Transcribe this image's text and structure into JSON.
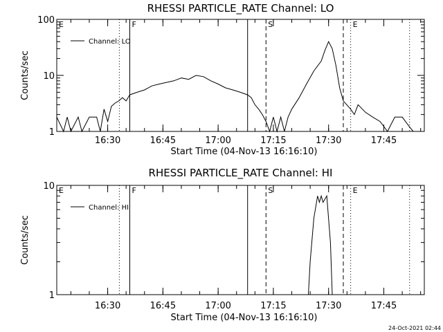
{
  "chart_data": [
    {
      "type": "line",
      "title": "RHESSI PARTICLE_RATE Channel: LO",
      "xlabel": "Start Time (04-Nov-13 16:16:10)",
      "ylabel": "Counts/sec",
      "yscale": "log",
      "ylim": [
        1,
        100
      ],
      "xlim": [
        "16:16:10",
        "17:56:00"
      ],
      "x_ticks": [
        "16:30",
        "16:45",
        "17:00",
        "17:15",
        "17:30",
        "17:45"
      ],
      "y_ticks": [
        "1",
        "10",
        "100"
      ],
      "legend": {
        "position": "top-left",
        "entries": [
          "Channel: LO"
        ]
      },
      "series": [
        {
          "name": "Channel: LO",
          "x": [
            "16:16:10",
            "16:18:00",
            "16:19:00",
            "16:20:00",
            "16:22:00",
            "16:23:00",
            "16:25:00",
            "16:27:00",
            "16:28:00",
            "16:29:00",
            "16:30:00",
            "16:31:00",
            "16:32:00",
            "16:33:00",
            "16:34:00",
            "16:35:00",
            "16:36:00",
            "16:38:00",
            "16:40:00",
            "16:42:00",
            "16:44:00",
            "16:46:00",
            "16:48:00",
            "16:50:00",
            "16:52:00",
            "16:54:00",
            "16:56:00",
            "16:58:00",
            "17:00:00",
            "17:02:00",
            "17:04:00",
            "17:06:00",
            "17:08:00",
            "17:09:00",
            "17:10:00",
            "17:11:00",
            "17:12:00",
            "17:13:00",
            "17:14:00",
            "17:15:00",
            "17:16:00",
            "17:17:00",
            "17:18:00",
            "17:19:00",
            "17:20:00",
            "17:22:00",
            "17:24:00",
            "17:26:00",
            "17:28:00",
            "17:29:00",
            "17:30:00",
            "17:31:00",
            "17:32:00",
            "17:33:00",
            "17:34:00",
            "17:36:00",
            "17:37:00",
            "17:38:00",
            "17:40:00",
            "17:42:00",
            "17:44:00",
            "17:46:00",
            "17:48:00",
            "17:50:00",
            "17:52:00",
            "17:53:00"
          ],
          "y": [
            1.8,
            1,
            1.8,
            1,
            1.8,
            1,
            1.8,
            1.8,
            1,
            2.5,
            1.5,
            2.8,
            3.2,
            3.5,
            4,
            3.5,
            4.5,
            5,
            5.5,
            6.5,
            7,
            7.5,
            8,
            9,
            8.5,
            10,
            9.5,
            8,
            7,
            6,
            5.5,
            5,
            4.5,
            4,
            3,
            2.5,
            2,
            1.5,
            1,
            1.8,
            1,
            1.8,
            1,
            1.8,
            2.5,
            4,
            7,
            12,
            18,
            28,
            40,
            30,
            15,
            6,
            3.5,
            2.5,
            2,
            3,
            2.2,
            1.8,
            1.5,
            1,
            1.8,
            1.8,
            1.2,
            1
          ]
        }
      ],
      "annotations": [
        {
          "label": "E",
          "time": "16:16:10",
          "style": "none"
        },
        {
          "label": "",
          "time": "16:33:10",
          "style": "dotted"
        },
        {
          "label": "F",
          "time": "16:36:00",
          "style": "solid"
        },
        {
          "label": "",
          "time": "17:08:00",
          "style": "solid"
        },
        {
          "label": "S",
          "time": "17:13:00",
          "style": "dashed"
        },
        {
          "label": "",
          "time": "17:34:00",
          "style": "dashed"
        },
        {
          "label": "E",
          "time": "17:36:00",
          "style": "dotted"
        },
        {
          "label": "",
          "time": "17:52:00",
          "style": "dotted"
        }
      ]
    },
    {
      "type": "line",
      "title": "RHESSI PARTICLE_RATE Channel: HI",
      "xlabel": "Start Time (04-Nov-13 16:16:10)",
      "ylabel": "Counts/sec",
      "yscale": "log",
      "ylim": [
        1,
        10
      ],
      "xlim": [
        "16:16:10",
        "17:56:00"
      ],
      "x_ticks": [
        "16:30",
        "16:45",
        "17:00",
        "17:15",
        "17:30",
        "17:45"
      ],
      "y_ticks": [
        "1",
        "10"
      ],
      "legend": {
        "position": "top-left",
        "entries": [
          "Channel: HI"
        ]
      },
      "series": [
        {
          "name": "Channel: HI",
          "x": [
            "17:24:30",
            "17:25:00",
            "17:26:00",
            "17:27:00",
            "17:27:30",
            "17:28:00",
            "17:28:30",
            "17:29:30",
            "17:30:30",
            "17:31:00"
          ],
          "y": [
            1,
            2,
            5,
            8,
            7,
            8,
            7,
            8,
            3,
            1
          ]
        }
      ],
      "annotations": [
        {
          "label": "E",
          "time": "16:16:10",
          "style": "none"
        },
        {
          "label": "",
          "time": "16:33:10",
          "style": "dotted"
        },
        {
          "label": "F",
          "time": "16:36:00",
          "style": "solid"
        },
        {
          "label": "",
          "time": "17:08:00",
          "style": "solid"
        },
        {
          "label": "S",
          "time": "17:13:00",
          "style": "dashed"
        },
        {
          "label": "",
          "time": "17:34:00",
          "style": "dashed"
        },
        {
          "label": "E",
          "time": "17:36:00",
          "style": "dotted"
        },
        {
          "label": "",
          "time": "17:52:00",
          "style": "dotted"
        }
      ]
    }
  ],
  "footer": {
    "timestamp": "24-Oct-2021 02:44"
  }
}
